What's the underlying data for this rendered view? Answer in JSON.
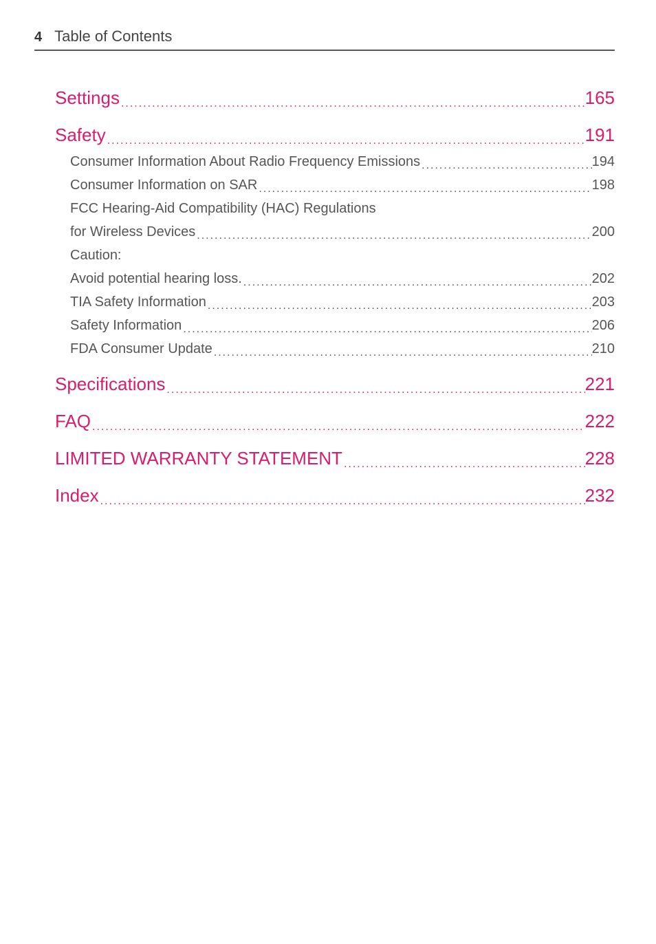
{
  "header": {
    "page_number": "4",
    "title": "Table of Contents"
  },
  "colors": {
    "accent": "#d81d6f",
    "body_text": "#555555",
    "border": "#555555",
    "background": "#ffffff"
  },
  "typography": {
    "header_title_size": 22,
    "page_num_size": 20,
    "major_size": 26,
    "minor_size": 20
  },
  "toc": [
    {
      "type": "major",
      "label": "Settings",
      "page": "165"
    },
    {
      "type": "major",
      "label": "Safety",
      "page": "191"
    },
    {
      "type": "minor",
      "label": "Consumer Information About Radio Frequency Emissions",
      "page": "194"
    },
    {
      "type": "minor",
      "label": "Consumer Information on SAR",
      "page": "198"
    },
    {
      "type": "plain",
      "label": "FCC Hearing-Aid Compatibility (HAC) Regulations"
    },
    {
      "type": "minor",
      "label": "for Wireless Devices",
      "page": "200"
    },
    {
      "type": "plain",
      "label": "Caution:"
    },
    {
      "type": "minor",
      "label": "Avoid potential hearing loss.",
      "page": "202"
    },
    {
      "type": "minor",
      "label": "TIA Safety Information",
      "page": "203"
    },
    {
      "type": "minor",
      "label": "Safety Information",
      "page": "206"
    },
    {
      "type": "minor",
      "label": "FDA Consumer Update",
      "page": "210"
    },
    {
      "type": "major",
      "label": "Specifications",
      "page": "221"
    },
    {
      "type": "major",
      "label": "FAQ",
      "page": "222"
    },
    {
      "type": "major",
      "label": "LIMITED WARRANTY STATEMENT",
      "page": "228"
    },
    {
      "type": "major",
      "label": "Index",
      "page": "232"
    }
  ]
}
